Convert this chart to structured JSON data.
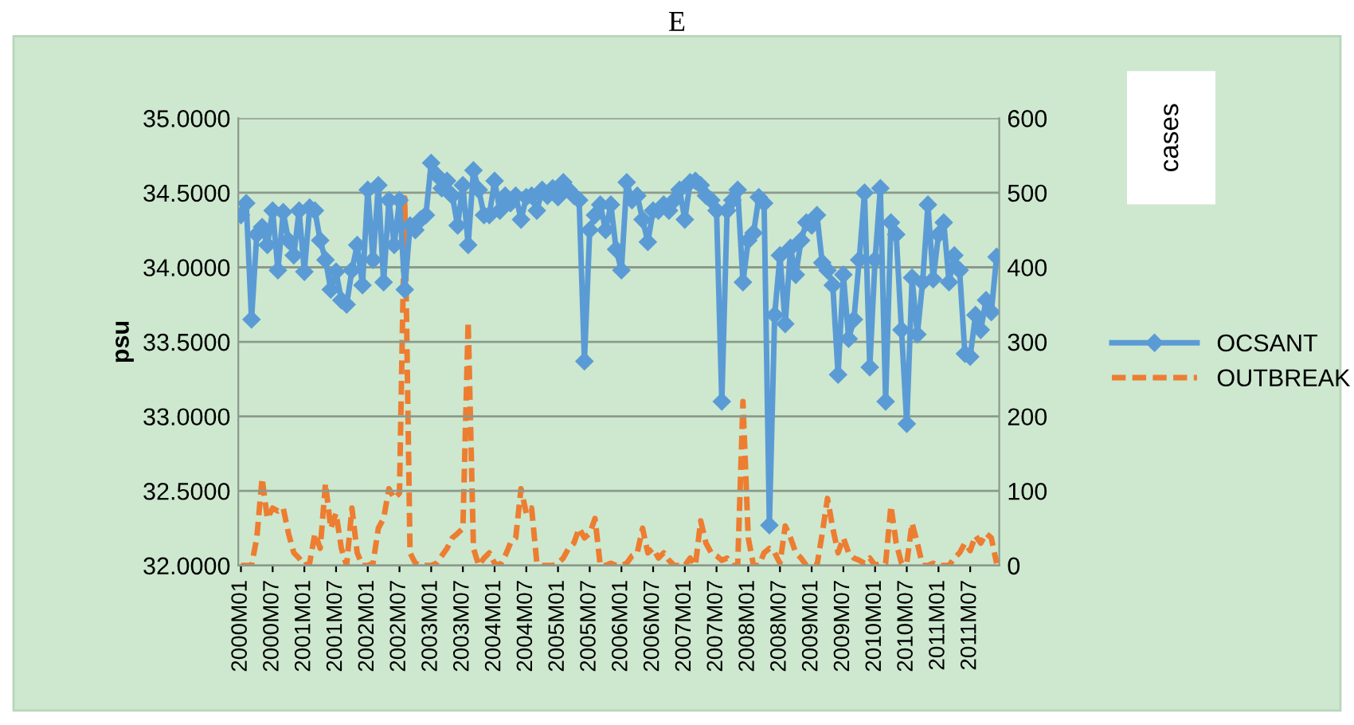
{
  "chart_data": {
    "type": "line",
    "title": "E",
    "ylabel": "psu",
    "y2label": "cases",
    "categories": [
      "2000M01",
      null,
      null,
      null,
      null,
      null,
      "2000M07",
      null,
      null,
      null,
      null,
      null,
      "2001M01",
      null,
      null,
      null,
      null,
      null,
      "2001M07",
      null,
      null,
      null,
      null,
      null,
      "2002M01",
      null,
      null,
      null,
      null,
      null,
      "2002M07",
      null,
      null,
      null,
      null,
      null,
      "2003M01",
      null,
      null,
      null,
      null,
      null,
      "2003M07",
      null,
      null,
      null,
      null,
      null,
      "2004M01",
      null,
      null,
      null,
      null,
      null,
      "2004M07",
      null,
      null,
      null,
      null,
      null,
      "2005M01",
      null,
      null,
      null,
      null,
      null,
      "2005M07",
      null,
      null,
      null,
      null,
      null,
      "2006M01",
      null,
      null,
      null,
      null,
      null,
      "2006M07",
      null,
      null,
      null,
      null,
      null,
      "2007M01",
      null,
      null,
      null,
      null,
      null,
      "2007M07",
      null,
      null,
      null,
      null,
      null,
      "2008M01",
      null,
      null,
      null,
      null,
      null,
      "2008M07",
      null,
      null,
      null,
      null,
      null,
      "2009M01",
      null,
      null,
      null,
      null,
      null,
      "2009M07",
      null,
      null,
      null,
      null,
      null,
      "2010M01",
      null,
      null,
      null,
      null,
      null,
      "2010M07",
      null,
      null,
      null,
      null,
      null,
      "2011M01",
      null,
      null,
      null,
      null,
      null,
      "2011M07",
      null,
      null,
      null,
      null,
      null
    ],
    "series": [
      {
        "name": "OCSANT",
        "color": "#5b9bd5",
        "marker": "diamond",
        "line_style": "solid",
        "values": [
          34.35,
          34.43,
          33.65,
          34.22,
          34.27,
          34.15,
          34.38,
          33.98,
          34.37,
          34.18,
          34.08,
          34.38,
          33.97,
          34.4,
          34.38,
          34.18,
          34.05,
          33.85,
          33.97,
          33.78,
          33.75,
          33.98,
          34.15,
          33.88,
          34.52,
          34.05,
          34.55,
          33.9,
          34.45,
          34.15,
          34.45,
          33.85,
          34.28,
          34.25,
          34.32,
          34.35,
          34.7,
          34.62,
          34.53,
          34.58,
          34.48,
          34.28,
          34.55,
          34.15,
          34.65,
          34.52,
          34.35,
          34.35,
          34.58,
          34.38,
          34.48,
          34.43,
          34.48,
          34.32,
          34.47,
          34.48,
          34.38,
          34.52,
          34.48,
          34.53,
          34.47,
          34.57,
          34.52,
          34.48,
          34.45,
          33.37,
          34.25,
          34.35,
          34.42,
          34.25,
          34.42,
          34.12,
          33.98,
          34.57,
          34.45,
          34.48,
          34.32,
          34.17,
          34.38,
          34.38,
          34.42,
          34.38,
          34.45,
          34.52,
          34.32,
          34.57,
          34.58,
          34.55,
          34.48,
          34.45,
          34.38,
          33.1,
          34.38,
          34.45,
          34.52,
          33.9,
          34.18,
          34.23,
          34.47,
          34.43,
          32.27,
          33.68,
          34.08,
          33.62,
          34.13,
          33.95,
          34.18,
          34.3,
          34.28,
          34.35,
          34.03,
          33.98,
          33.88,
          33.28,
          33.95,
          33.52,
          33.65,
          34.05,
          34.5,
          33.33,
          34.05,
          34.53,
          33.1,
          34.3,
          34.22,
          33.58,
          32.95,
          33.93,
          33.55,
          33.9,
          34.42,
          33.92,
          34.22,
          34.3,
          33.9,
          34.08,
          33.98,
          33.42,
          33.4,
          33.68,
          33.58,
          33.78,
          33.7,
          34.07
        ]
      },
      {
        "name": "OUTBREAK",
        "color": "#ed7d31",
        "axis": "y2",
        "marker": "none",
        "line_style": "dashed",
        "values": [
          0,
          0,
          0,
          37,
          117,
          63,
          77,
          73,
          77,
          43,
          17,
          10,
          0,
          3,
          43,
          23,
          110,
          50,
          70,
          23,
          0,
          77,
          17,
          0,
          0,
          3,
          50,
          63,
          103,
          90,
          97,
          493,
          17,
          3,
          0,
          0,
          0,
          3,
          13,
          23,
          37,
          43,
          50,
          327,
          23,
          0,
          10,
          17,
          3,
          0,
          13,
          30,
          37,
          103,
          70,
          77,
          3,
          0,
          0,
          0,
          3,
          10,
          23,
          30,
          50,
          37,
          43,
          63,
          0,
          0,
          3,
          0,
          0,
          3,
          13,
          17,
          50,
          17,
          23,
          10,
          17,
          7,
          0,
          0,
          0,
          10,
          0,
          60,
          30,
          17,
          13,
          7,
          10,
          0,
          0,
          220,
          37,
          0,
          0,
          17,
          23,
          17,
          3,
          53,
          37,
          17,
          10,
          0,
          0,
          0,
          43,
          90,
          50,
          17,
          37,
          17,
          10,
          7,
          3,
          10,
          0,
          3,
          3,
          80,
          30,
          3,
          3,
          57,
          30,
          0,
          0,
          3,
          0,
          0,
          0,
          10,
          17,
          30,
          20,
          40,
          30,
          43,
          37,
          3
        ]
      }
    ],
    "ylim": [
      32,
      35
    ],
    "yticks": [
      {
        "value": 32,
        "label": "32.0000"
      },
      {
        "value": 32.5,
        "label": "32.5000"
      },
      {
        "value": 33,
        "label": "33.0000"
      },
      {
        "value": 33.5,
        "label": "33.5000"
      },
      {
        "value": 34,
        "label": "34.0000"
      },
      {
        "value": 34.5,
        "label": "34.5000"
      },
      {
        "value": 35,
        "label": "35.0000"
      }
    ],
    "y2lim": [
      0,
      600
    ],
    "y2ticks": [
      0,
      100,
      200,
      300,
      400,
      500,
      600
    ],
    "grid": "y",
    "legend": "right"
  }
}
